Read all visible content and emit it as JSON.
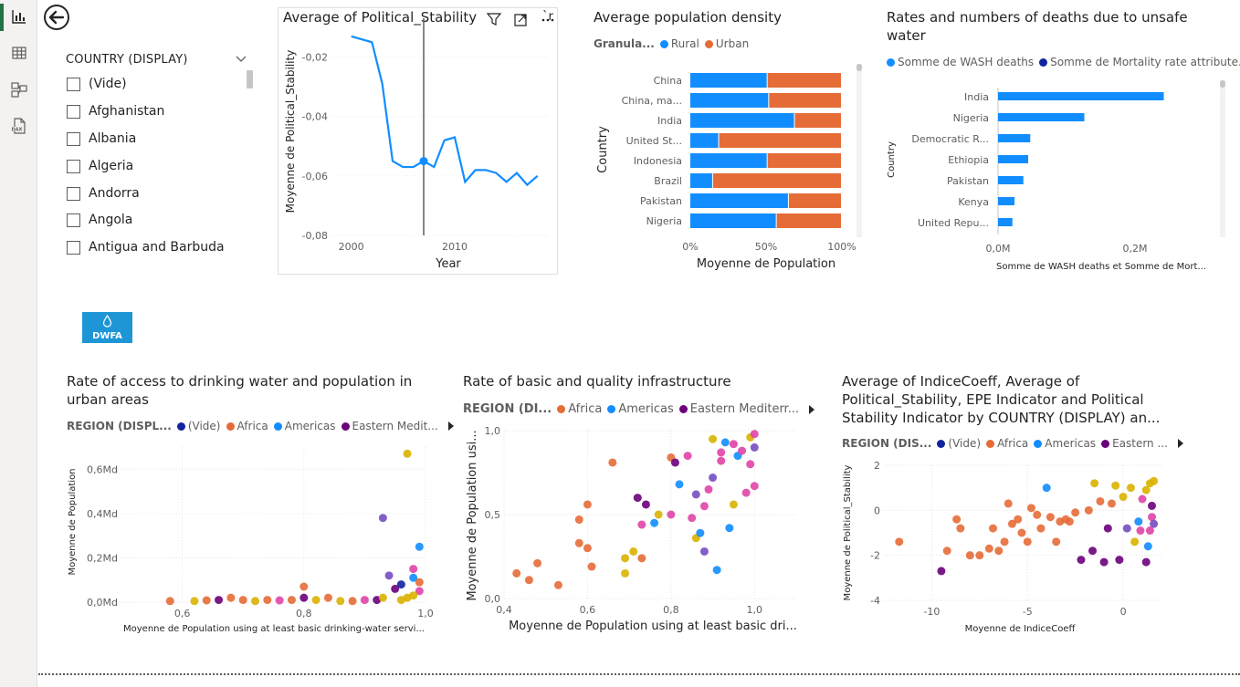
{
  "sidebar": {
    "icons": [
      "bar-chart-icon",
      "table-icon",
      "model-icon",
      "dax-icon"
    ]
  },
  "slicer": {
    "title": "COUNTRY (DISPLAY)",
    "items": [
      "(Vide)",
      "Afghanistan",
      "Albania",
      "Algeria",
      "Andorra",
      "Angola",
      "Antigua and Barbuda"
    ]
  },
  "logo": {
    "text": "DWFA"
  },
  "colors": {
    "blue": "#118dff",
    "orange": "#e66c37",
    "darkblue": "#12239e",
    "purple": "#6b007b",
    "violet": "#744ec2",
    "pink": "#e044a7",
    "gold": "#d9b300"
  },
  "charts": {
    "political": {
      "title": "Average of Political_Stability",
      "title_overflow": "`r",
      "header_icons": [
        "filter-icon",
        "focus-mode-icon",
        "more-options-icon"
      ],
      "chart_data": {
        "type": "line",
        "xlabel": "Year",
        "ylabel": "Moyenne de Political_Stability",
        "xticks": [
          "2000",
          "2010"
        ],
        "yticks": [
          "-0,02",
          "-0,04",
          "-0,06",
          "-0,08"
        ],
        "xlim": [
          1998,
          2019
        ],
        "ylim": [
          -0.08,
          -0.01
        ],
        "x": [
          2000,
          2002,
          2003,
          2004,
          2005,
          2006,
          2007,
          2008,
          2009,
          2010,
          2011,
          2012,
          2013,
          2014,
          2015,
          2016,
          2017,
          2018
        ],
        "values": [
          -0.013,
          -0.015,
          -0.029,
          -0.055,
          -0.057,
          -0.057,
          -0.055,
          -0.057,
          -0.048,
          -0.047,
          -0.062,
          -0.058,
          -0.058,
          -0.059,
          -0.062,
          -0.059,
          -0.063,
          -0.06
        ],
        "highlight_x": 2007
      }
    },
    "density": {
      "title": "Average population density",
      "chart_data": {
        "type": "bar",
        "stacked": "100%",
        "orientation": "horizontal",
        "legend_title": "Granula...",
        "ylabel": "Country",
        "xlabel": "Moyenne de Population",
        "xticks": [
          "0%",
          "50%",
          "100%"
        ],
        "categories": [
          "China",
          "China, ma...",
          "India",
          "United St...",
          "Indonesia",
          "Brazil",
          "Pakistan",
          "Nigeria"
        ],
        "series": [
          {
            "name": "Rural",
            "values": [
              51,
              52,
              69,
              19,
              51,
              15,
              65,
              57
            ]
          },
          {
            "name": "Urban",
            "values": [
              49,
              48,
              31,
              81,
              49,
              85,
              35,
              43
            ]
          }
        ]
      }
    },
    "deaths": {
      "title_line1": "Rates and numbers of deaths due to unsafe",
      "title_line2": "water",
      "chart_data": {
        "type": "bar",
        "orientation": "horizontal",
        "ylabel": "Country",
        "xlabel": "Somme de WASH deaths et Somme de Mort...",
        "xticks": [
          "0,0M",
          "0,2M"
        ],
        "xlim": [
          0,
          0.3
        ],
        "categories": [
          "India",
          "Nigeria",
          "Democratic R...",
          "Ethiopia",
          "Pakistan",
          "Kenya",
          "United Repu..."
        ],
        "series": [
          {
            "name": "Somme de WASH deaths",
            "values": [
              0.242,
              0.126,
              0.047,
              0.044,
              0.037,
              0.024,
              0.021
            ]
          },
          {
            "name": "Somme de Mortality rate attribute...",
            "values": [
              0,
              0,
              0,
              0,
              0,
              0,
              0
            ]
          }
        ]
      }
    },
    "access": {
      "title_line1": "Rate of access to drinking water and population in",
      "title_line2": "urban areas",
      "chart_data": {
        "type": "scatter",
        "legend_title": "REGION (DISPL...",
        "legend": [
          "(Vide)",
          "Africa",
          "Americas",
          "Eastern Medit..."
        ],
        "xlabel": "Moyenne de Population using at least basic drinking-water servi...",
        "ylabel": "Moyenne de Population",
        "xticks": [
          "0,6",
          "0,8",
          "1,0"
        ],
        "yticks": [
          "0,6Md",
          "0,4Md",
          "0,2Md",
          "0,0Md"
        ],
        "xlim": [
          0.5,
          1.0
        ],
        "ylim": [
          0,
          0.7
        ],
        "points": [
          [
            0.58,
            0.005,
            "orange"
          ],
          [
            0.66,
            0.01,
            "purple"
          ],
          [
            0.68,
            0.02,
            "orange"
          ],
          [
            0.7,
            0.01,
            "orange"
          ],
          [
            0.72,
            0.005,
            "gold"
          ],
          [
            0.74,
            0.01,
            "orange"
          ],
          [
            0.76,
            0.008,
            "pink"
          ],
          [
            0.78,
            0.01,
            "orange"
          ],
          [
            0.8,
            0.07,
            "orange"
          ],
          [
            0.8,
            0.02,
            "purple"
          ],
          [
            0.82,
            0.01,
            "gold"
          ],
          [
            0.84,
            0.02,
            "orange"
          ],
          [
            0.86,
            0.005,
            "gold"
          ],
          [
            0.88,
            0.005,
            "orange"
          ],
          [
            0.9,
            0.01,
            "pink"
          ],
          [
            0.92,
            0.01,
            "purple"
          ],
          [
            0.94,
            0.12,
            "violet"
          ],
          [
            0.95,
            0.06,
            "purple"
          ],
          [
            0.96,
            0.08,
            "darkblue"
          ],
          [
            0.97,
            0.02,
            "gold"
          ],
          [
            0.98,
            0.15,
            "pink"
          ],
          [
            0.98,
            0.11,
            "blue"
          ],
          [
            0.99,
            0.25,
            "blue"
          ],
          [
            0.93,
            0.38,
            "violet"
          ],
          [
            0.97,
            0.67,
            "gold"
          ],
          [
            0.99,
            0.05,
            "pink"
          ],
          [
            0.98,
            0.03,
            "gold"
          ],
          [
            0.96,
            0.01,
            "gold"
          ],
          [
            0.99,
            0.09,
            "orange"
          ],
          [
            0.93,
            0.02,
            "gold"
          ],
          [
            0.62,
            0.005,
            "gold"
          ],
          [
            0.64,
            0.008,
            "orange"
          ]
        ]
      }
    },
    "infra": {
      "title": "Rate of basic and quality infrastructure",
      "chart_data": {
        "type": "scatter",
        "legend_title": "REGION (DI...",
        "legend": [
          "Africa",
          "Americas",
          "Eastern Mediterr..."
        ],
        "xlabel": "Moyenne de Population using at least basic dri...",
        "ylabel": "Moyenne de Population usi...",
        "xticks": [
          "0,4",
          "0,6",
          "0,8",
          "1,0"
        ],
        "yticks": [
          "1,0",
          "0,5",
          "0,0"
        ],
        "xlim": [
          0.4,
          1.1
        ],
        "ylim": [
          0,
          1
        ],
        "points": [
          [
            0.43,
            0.15,
            "orange"
          ],
          [
            0.46,
            0.11,
            "orange"
          ],
          [
            0.48,
            0.21,
            "orange"
          ],
          [
            0.53,
            0.08,
            "orange"
          ],
          [
            0.58,
            0.33,
            "orange"
          ],
          [
            0.58,
            0.47,
            "orange"
          ],
          [
            0.6,
            0.56,
            "orange"
          ],
          [
            0.6,
            0.3,
            "orange"
          ],
          [
            0.61,
            0.19,
            "orange"
          ],
          [
            0.66,
            0.81,
            "orange"
          ],
          [
            0.69,
            0.15,
            "gold"
          ],
          [
            0.69,
            0.24,
            "gold"
          ],
          [
            0.71,
            0.28,
            "gold"
          ],
          [
            0.72,
            0.6,
            "purple"
          ],
          [
            0.73,
            0.44,
            "pink"
          ],
          [
            0.73,
            0.24,
            "orange"
          ],
          [
            0.74,
            0.56,
            "purple"
          ],
          [
            0.76,
            0.45,
            "blue"
          ],
          [
            0.77,
            0.5,
            "gold"
          ],
          [
            0.8,
            0.84,
            "orange"
          ],
          [
            0.8,
            0.5,
            "pink"
          ],
          [
            0.81,
            0.81,
            "purple"
          ],
          [
            0.82,
            0.68,
            "blue"
          ],
          [
            0.84,
            0.85,
            "pink"
          ],
          [
            0.85,
            0.48,
            "pink"
          ],
          [
            0.86,
            0.36,
            "gold"
          ],
          [
            0.87,
            0.39,
            "blue"
          ],
          [
            0.88,
            0.28,
            "violet"
          ],
          [
            0.89,
            0.65,
            "pink"
          ],
          [
            0.9,
            0.72,
            "violet"
          ],
          [
            0.91,
            0.17,
            "blue"
          ],
          [
            0.92,
            0.82,
            "pink"
          ],
          [
            0.93,
            0.93,
            "blue"
          ],
          [
            0.94,
            0.42,
            "blue"
          ],
          [
            0.95,
            0.56,
            "gold"
          ],
          [
            0.96,
            0.85,
            "blue"
          ],
          [
            0.97,
            0.88,
            "pink"
          ],
          [
            0.98,
            0.63,
            "pink"
          ],
          [
            0.99,
            0.96,
            "gold"
          ],
          [
            1.0,
            0.98,
            "pink"
          ],
          [
            1.0,
            0.9,
            "violet"
          ],
          [
            1.0,
            0.67,
            "pink"
          ],
          [
            0.9,
            0.95,
            "gold"
          ],
          [
            0.95,
            0.92,
            "pink"
          ],
          [
            0.88,
            0.55,
            "pink"
          ],
          [
            0.86,
            0.62,
            "violet"
          ],
          [
            0.99,
            0.8,
            "pink"
          ],
          [
            0.92,
            0.87,
            "pink"
          ]
        ]
      }
    },
    "indice": {
      "title_line1": "Average of IndiceCoeff, Average of",
      "title_line2": "Political_Stability, EPE Indicator and Political",
      "title_line3": "Stability Indicator by COUNTRY (DISPLAY) an...",
      "chart_data": {
        "type": "scatter",
        "legend_title": "REGION (DIS...",
        "legend": [
          "(Vide)",
          "Africa",
          "Americas",
          "Eastern ..."
        ],
        "xlabel": "Moyenne de IndiceCoeff",
        "ylabel": "Moyenne de Political_Stability",
        "xticks": [
          "-10",
          "-5",
          "0"
        ],
        "yticks": [
          "2",
          "0",
          "-2",
          "-4"
        ],
        "xlim": [
          -12.5,
          2
        ],
        "ylim": [
          -4,
          2
        ],
        "points": [
          [
            -11.7,
            -1.4,
            "orange"
          ],
          [
            -9.5,
            -2.7,
            "purple"
          ],
          [
            -9.2,
            -1.8,
            "orange"
          ],
          [
            -8.7,
            -0.4,
            "orange"
          ],
          [
            -8.5,
            -0.8,
            "orange"
          ],
          [
            -8.0,
            -2.0,
            "orange"
          ],
          [
            -7.5,
            -2.0,
            "orange"
          ],
          [
            -7.0,
            -1.7,
            "orange"
          ],
          [
            -6.8,
            -0.8,
            "orange"
          ],
          [
            -6.5,
            -1.8,
            "orange"
          ],
          [
            -6.2,
            -1.4,
            "orange"
          ],
          [
            -6.0,
            0.3,
            "orange"
          ],
          [
            -5.8,
            -0.6,
            "orange"
          ],
          [
            -5.5,
            -0.4,
            "orange"
          ],
          [
            -5.3,
            -1.0,
            "orange"
          ],
          [
            -5.0,
            -1.4,
            "orange"
          ],
          [
            -4.8,
            0.1,
            "orange"
          ],
          [
            -4.5,
            -0.2,
            "orange"
          ],
          [
            -4.3,
            -0.8,
            "orange"
          ],
          [
            -4.0,
            1.0,
            "blue"
          ],
          [
            -3.8,
            -0.3,
            "orange"
          ],
          [
            -3.5,
            -1.4,
            "orange"
          ],
          [
            -3.3,
            -0.5,
            "orange"
          ],
          [
            -3.0,
            -0.4,
            "orange"
          ],
          [
            -2.8,
            -0.5,
            "orange"
          ],
          [
            -2.5,
            -0.1,
            "orange"
          ],
          [
            -2.2,
            -2.2,
            "purple"
          ],
          [
            -1.8,
            0.0,
            "orange"
          ],
          [
            -1.6,
            -1.8,
            "purple"
          ],
          [
            -1.5,
            1.2,
            "gold"
          ],
          [
            -1.2,
            0.4,
            "orange"
          ],
          [
            -1.0,
            -2.3,
            "purple"
          ],
          [
            -0.8,
            -0.8,
            "purple"
          ],
          [
            -0.6,
            0.3,
            "orange"
          ],
          [
            -0.4,
            1.1,
            "gold"
          ],
          [
            -0.2,
            -2.2,
            "purple"
          ],
          [
            0.0,
            0.6,
            "gold"
          ],
          [
            0.2,
            -0.8,
            "violet"
          ],
          [
            0.4,
            1.0,
            "gold"
          ],
          [
            0.6,
            -1.4,
            "gold"
          ],
          [
            0.8,
            -0.5,
            "blue"
          ],
          [
            1.0,
            0.5,
            "pink"
          ],
          [
            1.2,
            0.9,
            "gold"
          ],
          [
            1.3,
            -1.6,
            "blue"
          ],
          [
            1.4,
            1.2,
            "gold"
          ],
          [
            1.5,
            -0.3,
            "pink"
          ],
          [
            1.5,
            0.2,
            "purple"
          ],
          [
            1.6,
            1.3,
            "gold"
          ],
          [
            1.4,
            -0.9,
            "pink"
          ],
          [
            1.2,
            -2.3,
            "purple"
          ],
          [
            1.6,
            -0.6,
            "violet"
          ],
          [
            0.9,
            -0.9,
            "pink"
          ]
        ]
      }
    }
  }
}
